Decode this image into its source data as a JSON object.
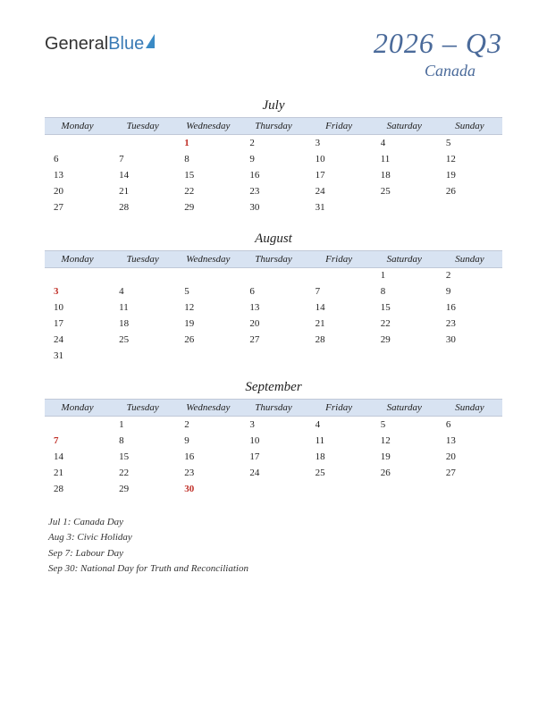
{
  "logo": {
    "part1": "General",
    "part2": "Blue"
  },
  "title": "2026 – Q3",
  "subtitle": "Canada",
  "day_headers": [
    "Monday",
    "Tuesday",
    "Wednesday",
    "Thursday",
    "Friday",
    "Saturday",
    "Sunday"
  ],
  "colors": {
    "header_bg": "#d8e3f2",
    "title_color": "#4a6a9a",
    "holiday_color": "#c03028",
    "text_color": "#222222",
    "background": "#ffffff"
  },
  "months": [
    {
      "name": "July",
      "weeks": [
        [
          "",
          "",
          "1*",
          "2",
          "3",
          "4",
          "5"
        ],
        [
          "6",
          "7",
          "8",
          "9",
          "10",
          "11",
          "12"
        ],
        [
          "13",
          "14",
          "15",
          "16",
          "17",
          "18",
          "19"
        ],
        [
          "20",
          "21",
          "22",
          "23",
          "24",
          "25",
          "26"
        ],
        [
          "27",
          "28",
          "29",
          "30",
          "31",
          "",
          ""
        ]
      ]
    },
    {
      "name": "August",
      "weeks": [
        [
          "",
          "",
          "",
          "",
          "",
          "1",
          "2"
        ],
        [
          "3*",
          "4",
          "5",
          "6",
          "7",
          "8",
          "9"
        ],
        [
          "10",
          "11",
          "12",
          "13",
          "14",
          "15",
          "16"
        ],
        [
          "17",
          "18",
          "19",
          "20",
          "21",
          "22",
          "23"
        ],
        [
          "24",
          "25",
          "26",
          "27",
          "28",
          "29",
          "30"
        ],
        [
          "31",
          "",
          "",
          "",
          "",
          "",
          ""
        ]
      ]
    },
    {
      "name": "September",
      "weeks": [
        [
          "",
          "1",
          "2",
          "3",
          "4",
          "5",
          "6"
        ],
        [
          "7*",
          "8",
          "9",
          "10",
          "11",
          "12",
          "13"
        ],
        [
          "14",
          "15",
          "16",
          "17",
          "18",
          "19",
          "20"
        ],
        [
          "21",
          "22",
          "23",
          "24",
          "25",
          "26",
          "27"
        ],
        [
          "28",
          "29",
          "30*",
          "",
          "",
          "",
          ""
        ]
      ]
    }
  ],
  "holidays": [
    "Jul 1: Canada Day",
    "Aug 3: Civic Holiday",
    "Sep 7: Labour Day",
    "Sep 30: National Day for Truth and Reconciliation"
  ]
}
